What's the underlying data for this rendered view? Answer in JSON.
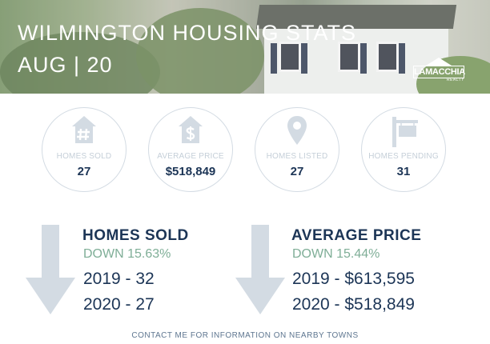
{
  "header": {
    "title": "WILMINGTON HOUSING STATS",
    "subtitle": "AUG | 20",
    "logo": {
      "name": "LAMACCHIA",
      "tagline": "REALTY"
    }
  },
  "colors": {
    "navy": "#1c3556",
    "green": "#7fae97",
    "light_gray": "#c5cfd8",
    "arrow": "#d3dbe3"
  },
  "stats": [
    {
      "label": "HOMES SOLD",
      "value": "27",
      "icon": "house-hash-icon"
    },
    {
      "label": "AVERAGE PRICE",
      "value": "$518,849",
      "icon": "house-dollar-icon"
    },
    {
      "label": "HOMES LISTED",
      "value": "27",
      "icon": "map-pin-icon"
    },
    {
      "label": "HOMES PENDING",
      "value": "31",
      "icon": "for-sale-sign-icon"
    }
  ],
  "sections": [
    {
      "heading": "HOMES SOLD",
      "change": "DOWN 15.63%",
      "line_2019": "2019 - 32",
      "line_2020": "2020 - 27",
      "icon": "down-arrow-icon"
    },
    {
      "heading": "AVERAGE PRICE",
      "change": "DOWN 15.44%",
      "line_2019": "2019 - $613,595",
      "line_2020": "2020 - $518,849",
      "icon": "down-arrow-icon"
    }
  ],
  "footer": "CONTACT ME FOR INFORMATION ON NEARBY TOWNS"
}
